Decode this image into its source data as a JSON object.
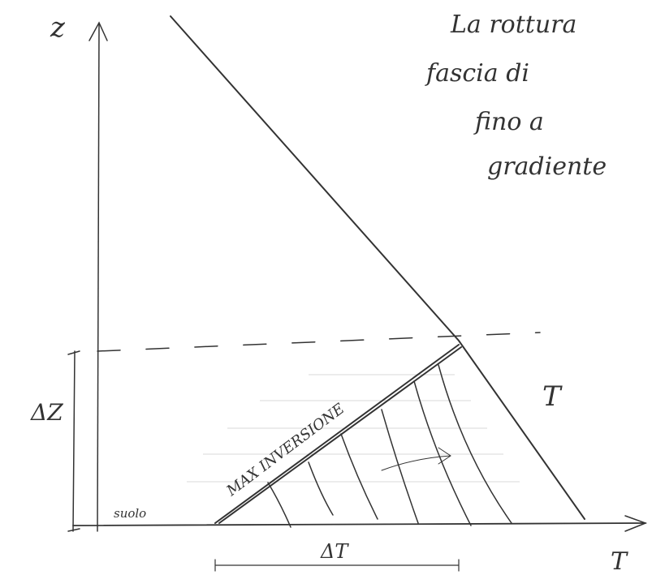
{
  "axes": {
    "vertical_label": "z",
    "horizontal_label": "T"
  },
  "notes": [
    "La rottura",
    "fascia di",
    "fino a",
    "gradiente"
  ],
  "labels": {
    "delta_z": "ΔZ",
    "profile": "T",
    "inversion": "MAX INVERSIONE",
    "ground": "suolo",
    "delta_t": "ΔT"
  }
}
